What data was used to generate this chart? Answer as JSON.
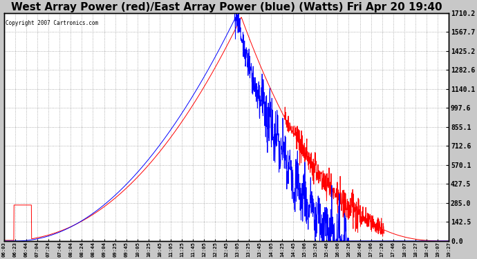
{
  "title": "West Array Power (red)/East Array Power (blue) (Watts) Fri Apr 20 19:40",
  "copyright": "Copyright 2007 Cartronics.com",
  "ylabel_right_ticks": [
    0.0,
    142.5,
    285.0,
    427.5,
    570.1,
    712.6,
    855.1,
    997.6,
    1140.1,
    1282.6,
    1425.2,
    1567.7,
    1710.2
  ],
  "ylabel_right_labels": [
    "0.0",
    "142.5",
    "285.0",
    "427.5",
    "570.1",
    "712.6",
    "855.1",
    "997.6",
    "1140.1",
    "1282.6",
    "1425.2",
    "1567.7",
    "1710.2"
  ],
  "ymax": 1710.2,
  "ymin": 0.0,
  "bg_color": "#c8c8c8",
  "plot_bg_color": "#ffffff",
  "grid_color": "#aaaaaa",
  "red_color": "#ff0000",
  "blue_color": "#0000ff",
  "title_fontsize": 11,
  "x_tick_labels": [
    "06:03",
    "06:23",
    "06:44",
    "07:04",
    "07:24",
    "07:44",
    "08:04",
    "08:24",
    "08:44",
    "09:04",
    "09:25",
    "09:45",
    "10:05",
    "10:25",
    "10:45",
    "11:05",
    "11:25",
    "11:45",
    "12:05",
    "12:25",
    "12:45",
    "13:05",
    "13:25",
    "13:45",
    "14:05",
    "14:25",
    "14:45",
    "15:06",
    "15:26",
    "15:46",
    "16:06",
    "16:26",
    "16:46",
    "17:06",
    "17:26",
    "17:46",
    "18:07",
    "18:27",
    "18:47",
    "19:07",
    "19:27"
  ]
}
